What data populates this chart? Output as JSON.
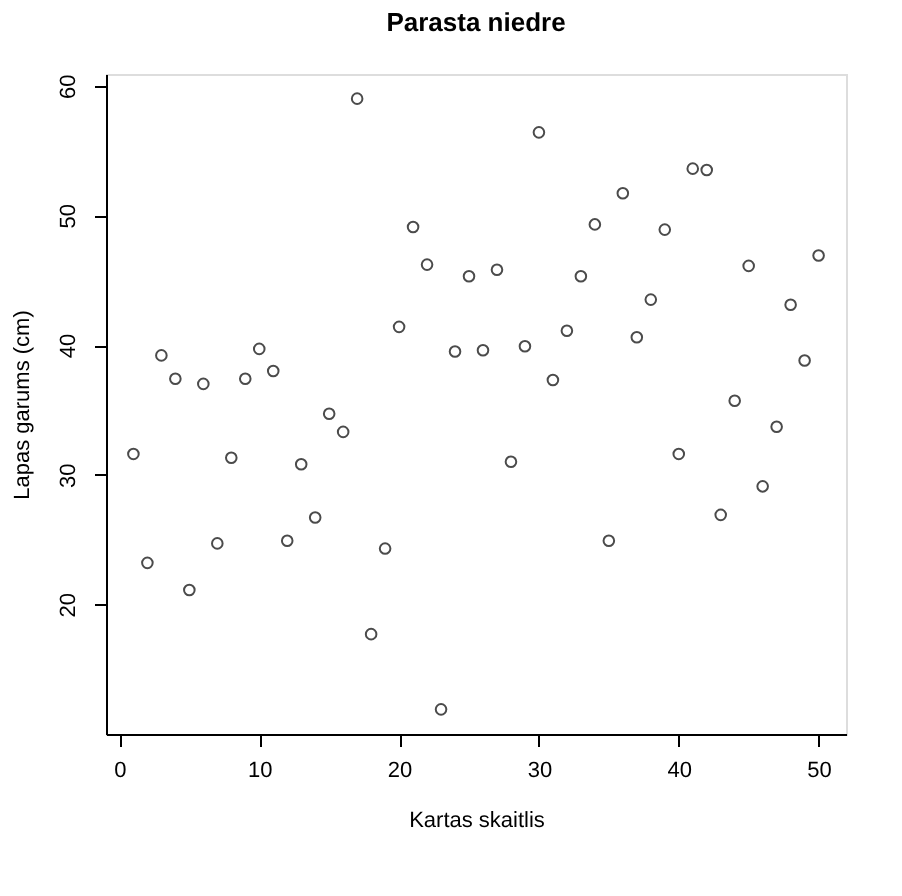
{
  "chart_data": {
    "type": "scatter",
    "title": "Parasta niedre",
    "xlabel": "Kartas skaitlis",
    "ylabel": "Lapas garums (cm)",
    "x": [
      1,
      2,
      3,
      4,
      5,
      6,
      7,
      8,
      9,
      10,
      11,
      12,
      13,
      14,
      15,
      16,
      17,
      18,
      19,
      20,
      21,
      22,
      23,
      24,
      25,
      26,
      27,
      28,
      29,
      30,
      31,
      32,
      33,
      34,
      35,
      36,
      37,
      38,
      39,
      40,
      41,
      42,
      43,
      44,
      45,
      46,
      47,
      48,
      49,
      50
    ],
    "series": [
      {
        "color": "#000000",
        "values": [
          31.6,
          23.2,
          39.2,
          37.4,
          21.1,
          37.0,
          24.7,
          31.3,
          37.4,
          39.7,
          38.0,
          24.9,
          30.8,
          26.7,
          34.7,
          33.3,
          59.0,
          17.7,
          24.3,
          41.4,
          49.1,
          46.2,
          11.9,
          39.5,
          45.3,
          39.6,
          45.8,
          31.0,
          39.9,
          56.4,
          37.3,
          41.1,
          45.3,
          49.3,
          24.9,
          51.7,
          40.6,
          43.5,
          48.9,
          31.6,
          53.6,
          53.5,
          26.9,
          35.7,
          46.1,
          29.1,
          33.7,
          43.1,
          38.8,
          46.9
        ]
      }
    ],
    "xlim": [
      -0.96,
      51.96
    ],
    "ylim": [
      10.0,
      60.9
    ],
    "xticks": [
      0,
      10,
      20,
      30,
      40,
      50
    ],
    "yticks": [
      20,
      30,
      40,
      50,
      60
    ],
    "marker": "circle",
    "grid": false
  }
}
